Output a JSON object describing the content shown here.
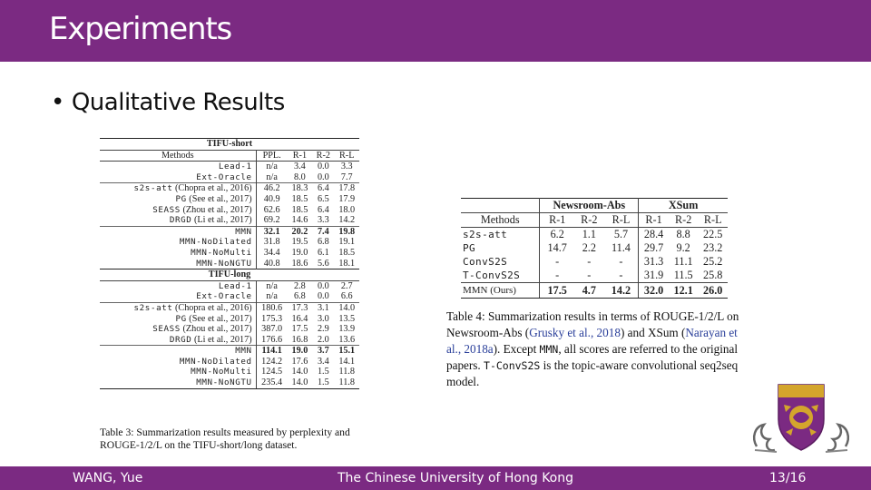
{
  "slide": {
    "title": "Experiments",
    "bullet": "Qualitative Results",
    "colors": {
      "accent": "#7b2a82",
      "link": "#2a3f9a"
    }
  },
  "table3": {
    "short_title": "TIFU-short",
    "long_title": "TIFU-long",
    "headers": [
      "Methods",
      "PPL.",
      "R-1",
      "R-2",
      "R-L"
    ],
    "short_rows": [
      [
        "Lead-1",
        "n/a",
        "3.4",
        "0.0",
        "3.3"
      ],
      [
        "Ext-Oracle",
        "n/a",
        "8.0",
        "0.0",
        "7.7"
      ],
      [
        "s2s-att (Chopra et al., 2016)",
        "46.2",
        "18.3",
        "6.4",
        "17.8"
      ],
      [
        "PG (See et al., 2017)",
        "40.9",
        "18.5",
        "6.5",
        "17.9"
      ],
      [
        "SEASS (Zhou et al., 2017)",
        "62.6",
        "18.5",
        "6.4",
        "18.0"
      ],
      [
        "DRGD (Li et al., 2017)",
        "69.2",
        "14.6",
        "3.3",
        "14.2"
      ],
      [
        "MMN",
        "32.1",
        "20.2",
        "7.4",
        "19.8"
      ],
      [
        "MMN-NoDilated",
        "31.8",
        "19.5",
        "6.8",
        "19.1"
      ],
      [
        "MMN-NoMulti",
        "34.4",
        "19.0",
        "6.1",
        "18.5"
      ],
      [
        "MMN-NoNGTU",
        "40.8",
        "18.6",
        "5.6",
        "18.1"
      ]
    ],
    "long_rows": [
      [
        "Lead-1",
        "n/a",
        "2.8",
        "0.0",
        "2.7"
      ],
      [
        "Ext-Oracle",
        "n/a",
        "6.8",
        "0.0",
        "6.6"
      ],
      [
        "s2s-att (Chopra et al., 2016)",
        "180.6",
        "17.3",
        "3.1",
        "14.0"
      ],
      [
        "PG (See et al., 2017)",
        "175.3",
        "16.4",
        "3.0",
        "13.5"
      ],
      [
        "SEASS (Zhou et al., 2017)",
        "387.0",
        "17.5",
        "2.9",
        "13.9"
      ],
      [
        "DRGD (Li et al., 2017)",
        "176.6",
        "16.8",
        "2.0",
        "13.6"
      ],
      [
        "MMN",
        "114.1",
        "19.0",
        "3.7",
        "15.1"
      ],
      [
        "MMN-NoDilated",
        "124.2",
        "17.6",
        "3.4",
        "14.1"
      ],
      [
        "MMN-NoMulti",
        "124.5",
        "14.0",
        "1.5",
        "11.8"
      ],
      [
        "MMN-NoNGTU",
        "235.4",
        "14.0",
        "1.5",
        "11.8"
      ]
    ],
    "caption": "Table 3: Summarization results measured by perplexity and ROUGE-1/2/L on the TIFU-short/long dataset."
  },
  "table4": {
    "group1": "Newsroom-Abs",
    "group2": "XSum",
    "headers": [
      "Methods",
      "R-1",
      "R-2",
      "R-L",
      "R-1",
      "R-2",
      "R-L"
    ],
    "rows": [
      [
        "s2s-att",
        "6.2",
        "1.1",
        "5.7",
        "28.4",
        "8.8",
        "22.5"
      ],
      [
        "PG",
        "14.7",
        "2.2",
        "11.4",
        "29.7",
        "9.2",
        "23.2"
      ],
      [
        "ConvS2S",
        "-",
        "-",
        "-",
        "31.3",
        "11.1",
        "25.2"
      ],
      [
        "T-ConvS2S",
        "-",
        "-",
        "-",
        "31.9",
        "11.5",
        "25.8"
      ],
      [
        "MMN (Ours)",
        "17.5",
        "4.7",
        "14.2",
        "32.0",
        "12.1",
        "26.0"
      ]
    ],
    "caption": {
      "p1": "Table 4: Summarization results in terms of ROUGE-1/2/L on Newsroom-Abs (",
      "ref1": "Grusky et al., 2018",
      "p2": ") and XSum (",
      "ref2": "Narayan et al., 2018a",
      "p3": "). Except ",
      "mmn": "MMN",
      "p4": ", all scores are referred to the original papers. ",
      "tconv": "T-ConvS2S",
      "p5": " is the topic-aware convolutional seq2seq model."
    }
  },
  "crest": {
    "icon": "university-crest-icon"
  },
  "footer": {
    "author": "WANG, Yue",
    "institution": "The Chinese University of Hong Kong",
    "page": "13/16"
  }
}
